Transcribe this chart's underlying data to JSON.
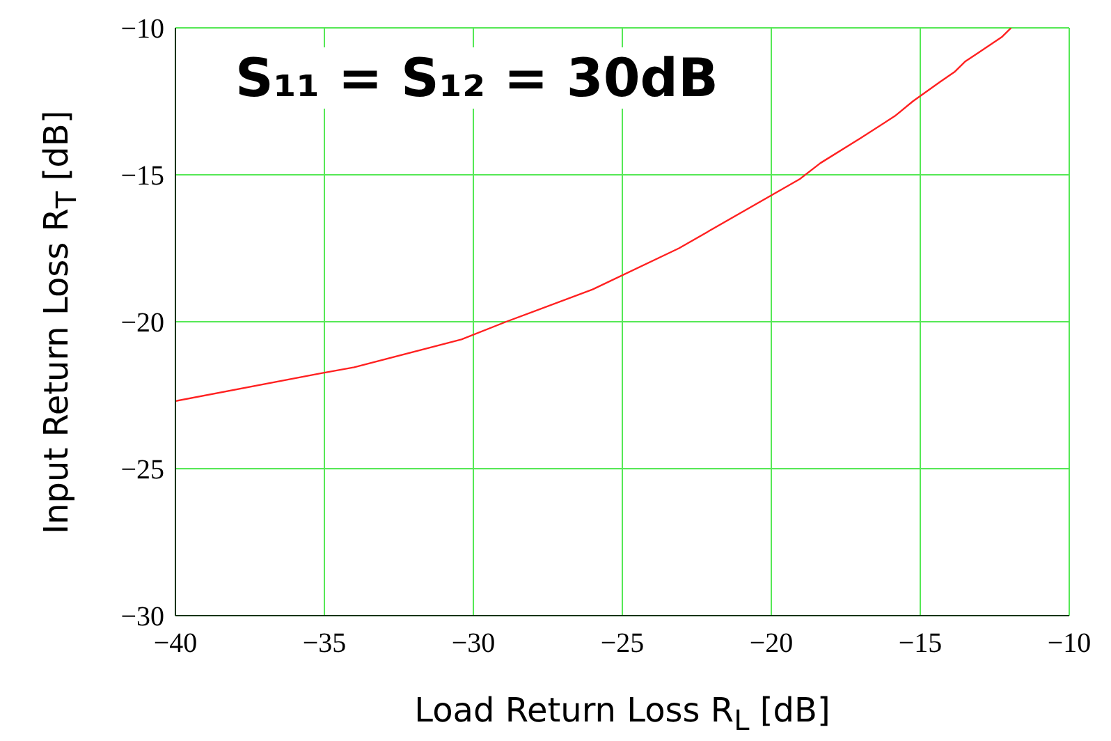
{
  "chart_data": {
    "type": "line",
    "xlabel": "Load Return Loss R$_{L}$ [dB]",
    "ylabel": "Input Return Loss R$_{T}$ [dB]",
    "annotations": [
      "S₁₁ = S₁₂ = 30dB"
    ],
    "x": [
      -40,
      -35.1,
      -34,
      -30.4,
      -28.9,
      -26,
      -23.1,
      -19.05,
      -18.35,
      -17,
      -15.85,
      -15.25,
      -14.35,
      -13.85,
      -13.5,
      -13.05,
      -12.25,
      -11.95
    ],
    "series": [
      {
        "color": "#ff2020",
        "values": [
          -22.7,
          -21.75,
          -21.55,
          -20.6,
          -20,
          -18.9,
          -17.5,
          -15.15,
          -14.6,
          -13.75,
          -13,
          -12.5,
          -11.85,
          -11.5,
          -11.15,
          -10.85,
          -10.3,
          -10
        ]
      }
    ],
    "xlim": [
      -40,
      -10
    ],
    "ylim": [
      -30,
      -10
    ],
    "xticks": [
      {
        "value": -40,
        "label": "−40"
      },
      {
        "value": -35,
        "label": "−35"
      },
      {
        "value": -30,
        "label": "−30"
      },
      {
        "value": -25,
        "label": "−25"
      },
      {
        "value": -20,
        "label": "−20"
      },
      {
        "value": -15,
        "label": "−15"
      },
      {
        "value": -10,
        "label": "−10"
      }
    ],
    "yticks": [
      {
        "value": -30,
        "label": "−30"
      },
      {
        "value": -25,
        "label": "−25"
      },
      {
        "value": -20,
        "label": "−20"
      },
      {
        "value": -15,
        "label": "−15"
      },
      {
        "value": -10,
        "label": "−10"
      }
    ],
    "grid": true,
    "marker": "none",
    "line_style": "solid"
  }
}
